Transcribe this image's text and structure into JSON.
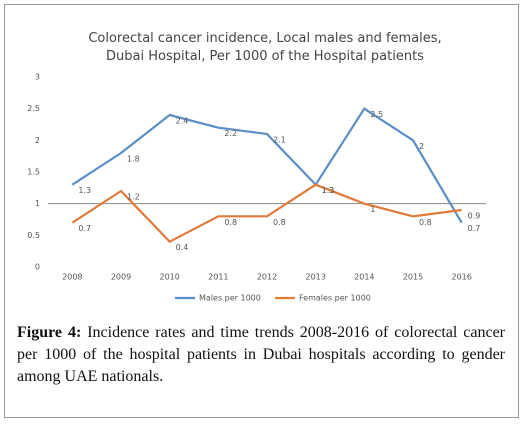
{
  "chart_data": {
    "type": "line",
    "title": "Colorectal cancer incidence, Local males and females, Dubai Hospital, Per 1000 of the Hospital patients",
    "categories": [
      "2008",
      "2009",
      "2010",
      "2011",
      "2012",
      "2013",
      "2014",
      "2015",
      "2016"
    ],
    "series": [
      {
        "name": "Males per 1000",
        "color": "#5b8ec6",
        "values": [
          1.3,
          1.8,
          2.4,
          2.2,
          2.1,
          1.3,
          2.5,
          2,
          0.7
        ]
      },
      {
        "name": "Females per 1000",
        "color": "#e07b39",
        "values": [
          0.7,
          1.2,
          0.4,
          0.8,
          0.8,
          1.3,
          1,
          0.8,
          0.9
        ]
      }
    ],
    "ylim": [
      0,
      3
    ],
    "yticks": [
      0,
      0.5,
      1,
      1.5,
      2,
      2.5,
      3
    ],
    "x_axis_at": 1,
    "grid": false,
    "legend": "bottom"
  },
  "caption": {
    "label": "Figure 4:",
    "text": "Incidence rates and time trends 2008-2016 of colorectal cancer per 1000 of the hospital patients in Dubai hospitals according to gender among UAE nationals."
  }
}
